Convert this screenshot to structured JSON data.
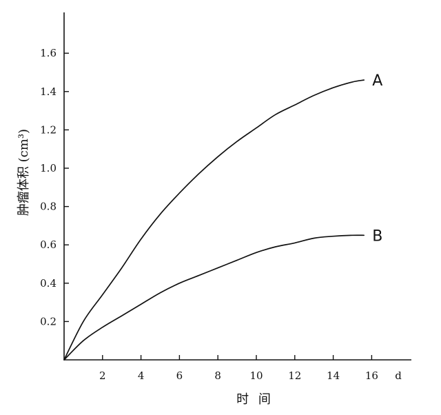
{
  "chart_data": {
    "type": "line",
    "title": "",
    "xlabel": "时 间",
    "x_unit": "d",
    "ylabel": "肿瘤体积 (cm³)",
    "xlim": [
      0,
      18.5
    ],
    "ylim": [
      0,
      1.8
    ],
    "x_ticks": [
      2,
      4,
      6,
      8,
      10,
      12,
      14,
      16
    ],
    "y_ticks": [
      0.2,
      0.4,
      0.6,
      0.8,
      1.0,
      1.2,
      1.4,
      1.6
    ],
    "x_tick_labels": [
      "2",
      "4",
      "6",
      "8",
      "10",
      "12",
      "14",
      "16"
    ],
    "y_tick_labels": [
      "0.2",
      "0.4",
      "0.6",
      "0.8",
      "1.0",
      "1.2",
      "1.4",
      "1.6"
    ],
    "grid": false,
    "series": [
      {
        "name": "A",
        "x": [
          0,
          1,
          2,
          3,
          4,
          5,
          6,
          7,
          8,
          9,
          10,
          11,
          12,
          13,
          14,
          15,
          15.6
        ],
        "y": [
          0,
          0.2,
          0.34,
          0.48,
          0.63,
          0.76,
          0.87,
          0.97,
          1.06,
          1.14,
          1.21,
          1.28,
          1.33,
          1.38,
          1.42,
          1.45,
          1.46
        ]
      },
      {
        "name": "B",
        "x": [
          0,
          1,
          2,
          3,
          4,
          5,
          6,
          7,
          8,
          9,
          10,
          11,
          12,
          13,
          14,
          15,
          15.6
        ],
        "y": [
          0,
          0.1,
          0.17,
          0.23,
          0.29,
          0.35,
          0.4,
          0.44,
          0.48,
          0.52,
          0.56,
          0.59,
          0.61,
          0.635,
          0.645,
          0.65,
          0.65
        ]
      }
    ]
  }
}
